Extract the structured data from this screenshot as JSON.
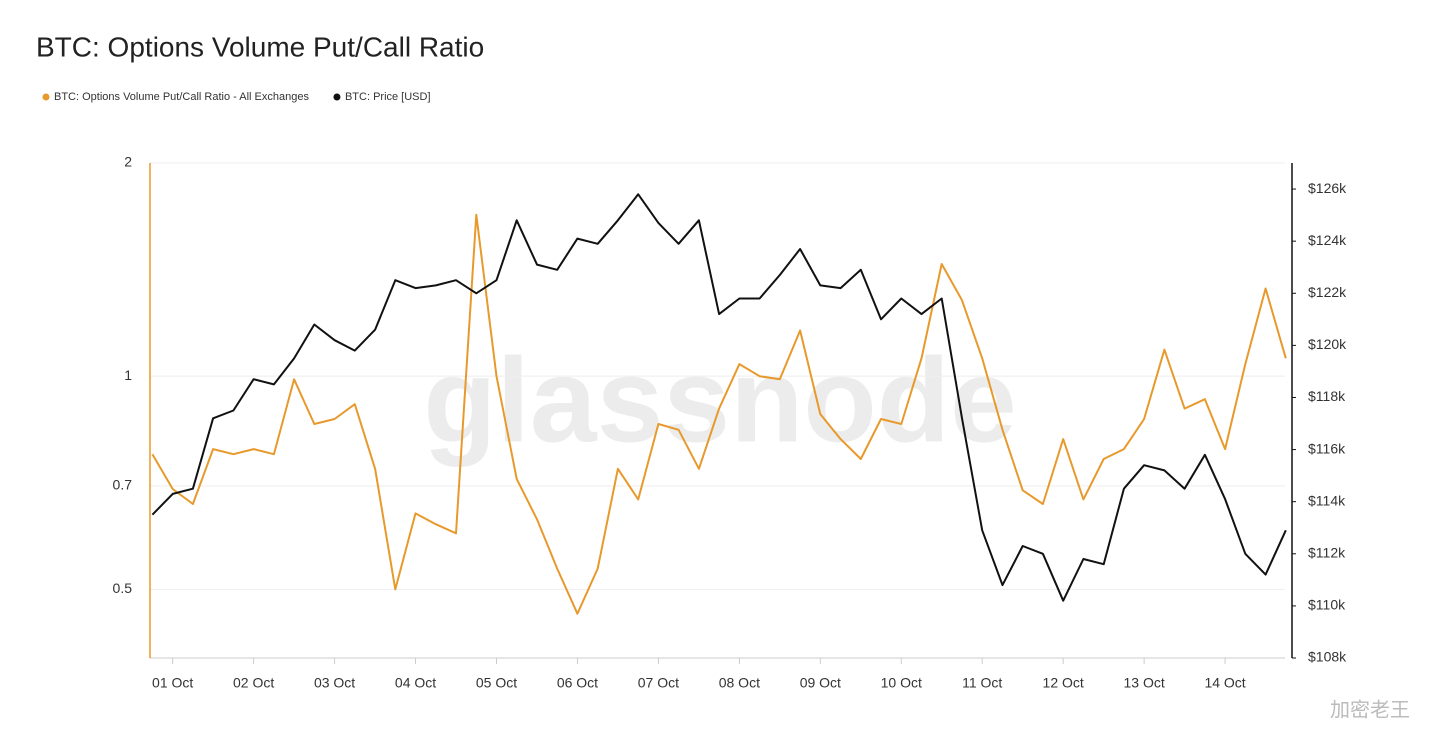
{
  "chart_data": {
    "type": "line",
    "title": "BTC: Options Volume Put/Call Ratio",
    "watermark": "glassnode",
    "corner_mark": "加密老王",
    "ylog": true,
    "grid": true,
    "x": [
      0.75,
      1,
      1.25,
      1.5,
      1.75,
      2,
      2.25,
      2.5,
      2.75,
      3,
      3.25,
      3.5,
      3.75,
      4,
      4.25,
      4.5,
      4.75,
      5,
      5.25,
      5.5,
      5.75,
      6,
      6.25,
      6.5,
      6.75,
      7,
      7.25,
      7.5,
      7.75,
      8,
      8.25,
      8.5,
      8.75,
      9,
      9.25,
      9.5,
      9.75,
      10,
      10.25,
      10.5,
      10.75,
      11,
      11.25,
      11.5,
      11.75,
      12,
      12.25,
      12.5,
      12.75,
      13,
      13.25,
      13.5,
      13.75,
      14,
      14.25,
      14.5,
      14.75
    ],
    "xlim": [
      0.72,
      14.74
    ],
    "xticks": [
      {
        "value": 1,
        "label": "01 Oct"
      },
      {
        "value": 2,
        "label": "02 Oct"
      },
      {
        "value": 3,
        "label": "03 Oct"
      },
      {
        "value": 4,
        "label": "04 Oct"
      },
      {
        "value": 5,
        "label": "05 Oct"
      },
      {
        "value": 6,
        "label": "06 Oct"
      },
      {
        "value": 7,
        "label": "07 Oct"
      },
      {
        "value": 8,
        "label": "08 Oct"
      },
      {
        "value": 9,
        "label": "09 Oct"
      },
      {
        "value": 10,
        "label": "10 Oct"
      },
      {
        "value": 11,
        "label": "11 Oct"
      },
      {
        "value": 12,
        "label": "12 Oct"
      },
      {
        "value": 13,
        "label": "13 Oct"
      },
      {
        "value": 14,
        "label": "14 Oct"
      }
    ],
    "ylim": [
      0.4,
      2
    ],
    "yticks": [
      0.5,
      0.7,
      1,
      2
    ],
    "y2lim": [
      108000,
      127000
    ],
    "y2ticks": [
      {
        "value": 108000,
        "label": "$108k"
      },
      {
        "value": 110000,
        "label": "$110k"
      },
      {
        "value": 112000,
        "label": "$112k"
      },
      {
        "value": 114000,
        "label": "$114k"
      },
      {
        "value": 116000,
        "label": "$116k"
      },
      {
        "value": 118000,
        "label": "$118k"
      },
      {
        "value": 120000,
        "label": "$120k"
      },
      {
        "value": 122000,
        "label": "$122k"
      },
      {
        "value": 124000,
        "label": "$124k"
      },
      {
        "value": 126000,
        "label": "$126k"
      }
    ],
    "series": [
      {
        "name": "BTC: Options Volume Put/Call Ratio - All Exchanges",
        "color": "#e8992c",
        "values": [
          0.776,
          0.693,
          0.66,
          0.789,
          0.776,
          0.789,
          0.776,
          0.99,
          0.856,
          0.87,
          0.913,
          0.74,
          0.5,
          0.64,
          0.618,
          0.6,
          1.69,
          1.0,
          0.716,
          0.628,
          0.535,
          0.462,
          0.535,
          0.74,
          0.67,
          0.856,
          0.84,
          0.74,
          0.9,
          1.04,
          1.0,
          0.99,
          1.16,
          0.884,
          0.815,
          0.764,
          0.87,
          0.856,
          1.06,
          1.44,
          1.28,
          1.06,
          0.84,
          0.69,
          0.66,
          0.815,
          0.67,
          0.764,
          0.789,
          0.87,
          1.09,
          0.9,
          0.928,
          0.789,
          1.04,
          1.33,
          1.06
        ]
      },
      {
        "name": "BTC: Price [USD]",
        "color": "#111111",
        "axis": "y2",
        "values": [
          113500,
          114300,
          114500,
          117200,
          117500,
          118700,
          118500,
          119500,
          120800,
          120200,
          119800,
          120600,
          122500,
          122200,
          122300,
          122500,
          122000,
          122500,
          124800,
          123100,
          122900,
          124100,
          123900,
          124800,
          125800,
          124700,
          123900,
          124800,
          121200,
          121800,
          121800,
          122700,
          123700,
          122300,
          122200,
          122900,
          121000,
          121800,
          121200,
          121800,
          117200,
          112900,
          110800,
          112300,
          112000,
          110200,
          111800,
          111600,
          114500,
          115400,
          115200,
          114500,
          115800,
          114100,
          112000,
          111200,
          112900
        ]
      }
    ]
  }
}
